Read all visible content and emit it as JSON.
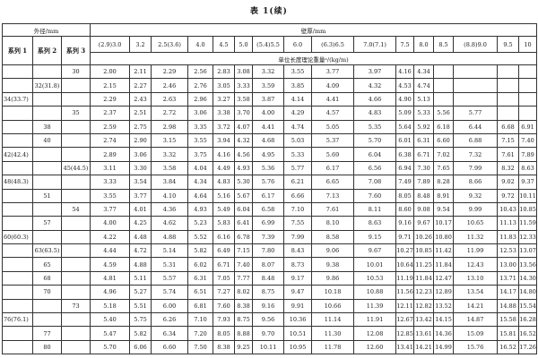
{
  "title": "表 1(续)",
  "header": {
    "outer_diameter": "外径/mm",
    "wall_thickness": "壁厚/mm",
    "unit_mass": "单位长度理论重量ᵃ/(kg/m)",
    "series": [
      "系列 1",
      "系列 2",
      "系列 3"
    ],
    "thickness": [
      "(2.9)3.0",
      "3.2",
      "2.5(3.6)",
      "4.0",
      "4.5",
      "5.0",
      "(5.4)5.5",
      "6.0",
      "(6.3)6.5",
      "7.0(7.1)",
      "7.5",
      "8.0",
      "8.5",
      "(8.8)9.0",
      "9.5",
      "10"
    ]
  },
  "rows": [
    {
      "s1": "",
      "s2": "",
      "s3": "30",
      "v": [
        "2.00",
        "2.11",
        "2.29",
        "2.56",
        "2.83",
        "3.08",
        "3.32",
        "3.55",
        "3.77",
        "3.97",
        "4.16",
        "4.34",
        "",
        "",
        "",
        ""
      ]
    },
    {
      "s1": "",
      "s2": "32(31.8)",
      "s3": "",
      "v": [
        "2.15",
        "2.27",
        "2.46",
        "2.76",
        "3.05",
        "3.33",
        "3.59",
        "3.85",
        "4.09",
        "4.32",
        "4.53",
        "4.74",
        "",
        "",
        "",
        ""
      ]
    },
    {
      "s1": "34(33.7)",
      "s2": "",
      "s3": "",
      "v": [
        "2.29",
        "2.43",
        "2.63",
        "2.96",
        "3.27",
        "3.58",
        "3.87",
        "4.14",
        "4.41",
        "4.66",
        "4.90",
        "5.13",
        "",
        "",
        "",
        ""
      ]
    },
    {
      "s1": "",
      "s2": "",
      "s3": "35",
      "v": [
        "2.37",
        "2.51",
        "2.72",
        "3.06",
        "3.38",
        "3.70",
        "4.00",
        "4.29",
        "4.57",
        "4.83",
        "5.09",
        "5.33",
        "5.56",
        "5.77",
        "",
        ""
      ]
    },
    {
      "s1": "",
      "s2": "38",
      "s3": "",
      "v": [
        "2.59",
        "2.75",
        "2.98",
        "3.35",
        "3.72",
        "4.07",
        "4.41",
        "4.74",
        "5.05",
        "5.35",
        "5.64",
        "5.92",
        "6.18",
        "6.44",
        "6.68",
        "6.91"
      ]
    },
    {
      "s1": "",
      "s2": "40",
      "s3": "",
      "v": [
        "2.74",
        "2.90",
        "3.15",
        "3.55",
        "3.94",
        "4.32",
        "4.68",
        "5.03",
        "5.37",
        "5.70",
        "6.01",
        "6.31",
        "6.60",
        "6.88",
        "7.15",
        "7.40"
      ]
    },
    {
      "s1": "42(42.4)",
      "s2": "",
      "s3": "",
      "v": [
        "2.89",
        "3.06",
        "3.32",
        "3.75",
        "4.16",
        "4.56",
        "4.95",
        "5.33",
        "5.69",
        "6.04",
        "6.38",
        "6.71",
        "7.02",
        "7.32",
        "7.61",
        "7.89"
      ]
    },
    {
      "s1": "",
      "s2": "",
      "s3": "45(44.5)",
      "v": [
        "3.11",
        "3.30",
        "3.58",
        "4.04",
        "4.49",
        "4.93",
        "5.36",
        "5.77",
        "6.17",
        "6.56",
        "6.94",
        "7.30",
        "7.65",
        "7.99",
        "8.32",
        "8.63"
      ]
    },
    {
      "s1": "48(48.3)",
      "s2": "",
      "s3": "",
      "v": [
        "3.33",
        "3.54",
        "3.84",
        "4.34",
        "4.83",
        "5.30",
        "5.76",
        "6.21",
        "6.65",
        "7.08",
        "7.49",
        "7.89",
        "8.28",
        "8.66",
        "9.02",
        "9.37"
      ]
    },
    {
      "s1": "",
      "s2": "51",
      "s3": "",
      "v": [
        "3.55",
        "3.77",
        "4.10",
        "4.64",
        "5.16",
        "5.67",
        "6.17",
        "6.66",
        "7.13",
        "7.60",
        "8.05",
        "8.48",
        "8.91",
        "9.32",
        "9.72",
        "10.11"
      ]
    },
    {
      "s1": "",
      "s2": "",
      "s3": "54",
      "v": [
        "3.77",
        "4.01",
        "4.36",
        "4.93",
        "5.49",
        "6.04",
        "6.58",
        "7.10",
        "7.61",
        "8.11",
        "8.60",
        "9.08",
        "9.54",
        "9.99",
        "10.43",
        "10.85"
      ]
    },
    {
      "s1": "",
      "s2": "57",
      "s3": "",
      "v": [
        "4.00",
        "4.25",
        "4.62",
        "5.23",
        "5.83",
        "6.41",
        "6.99",
        "7.55",
        "8.10",
        "8.63",
        "9.16",
        "9.67",
        "10.17",
        "10.65",
        "11.13",
        "11.59"
      ]
    },
    {
      "s1": "60(60.3)",
      "s2": "",
      "s3": "",
      "v": [
        "4.22",
        "4.48",
        "4.88",
        "5.52",
        "6.16",
        "6.78",
        "7.39",
        "7.99",
        "8.58",
        "9.15",
        "9.71",
        "10.26",
        "10.80",
        "11.32",
        "11.83",
        "12.33"
      ]
    },
    {
      "s1": "",
      "s2": "63(63.5)",
      "s3": "",
      "v": [
        "4.44",
        "4.72",
        "5.14",
        "5.82",
        "6.49",
        "7.15",
        "7.80",
        "8.43",
        "9.06",
        "9.67",
        "10.27",
        "10.85",
        "11.42",
        "11.99",
        "12.53",
        "13.07"
      ]
    },
    {
      "s1": "",
      "s2": "65",
      "s3": "",
      "v": [
        "4.59",
        "4.88",
        "5.31",
        "6.02",
        "6.71",
        "7.40",
        "8.07",
        "8.73",
        "9.38",
        "10.01",
        "10.64",
        "11.25",
        "11.84",
        "12.43",
        "13.00",
        "13.56"
      ]
    },
    {
      "s1": "",
      "s2": "68",
      "s3": "",
      "v": [
        "4.81",
        "5.11",
        "5.57",
        "6.31",
        "7.05",
        "7.77",
        "8.48",
        "9.17",
        "9.86",
        "10.53",
        "11.19",
        "11.84",
        "12.47",
        "13.10",
        "13.71",
        "14.30"
      ]
    },
    {
      "s1": "",
      "s2": "70",
      "s3": "",
      "v": [
        "4.96",
        "5.27",
        "5.74",
        "6.51",
        "7.27",
        "8.02",
        "8.75",
        "9.47",
        "10.18",
        "10.88",
        "11.56",
        "12.23",
        "12.89",
        "13.54",
        "14.17",
        "14.80"
      ]
    },
    {
      "s1": "",
      "s2": "",
      "s3": "73",
      "v": [
        "5.18",
        "5.51",
        "6.00",
        "6.81",
        "7.60",
        "8.38",
        "9.16",
        "9.91",
        "10.66",
        "11.39",
        "12.11",
        "12.82",
        "13.52",
        "14.21",
        "14.88",
        "15.54"
      ]
    },
    {
      "s1": "76(76.1)",
      "s2": "",
      "s3": "",
      "v": [
        "5.40",
        "5.75",
        "6.26",
        "7.10",
        "7.93",
        "8.75",
        "9.56",
        "10.36",
        "11.14",
        "11.91",
        "12.67",
        "13.42",
        "14.15",
        "14.87",
        "15.58",
        "16.28"
      ]
    },
    {
      "s1": "",
      "s2": "77",
      "s3": "",
      "v": [
        "5.47",
        "5.82",
        "6.34",
        "7.20",
        "8.05",
        "8.88",
        "9.70",
        "10.51",
        "11.30",
        "12.08",
        "12.85",
        "13.61",
        "14.36",
        "15.09",
        "15.81",
        "16.52"
      ]
    },
    {
      "s1": "",
      "s2": "80",
      "s3": "",
      "v": [
        "5.70",
        "6.06",
        "6.60",
        "7.50",
        "8.38",
        "9.25",
        "10.11",
        "10.95",
        "11.78",
        "12.60",
        "13.41",
        "14.21",
        "14.99",
        "15.76",
        "16.52",
        "17.26"
      ]
    }
  ]
}
